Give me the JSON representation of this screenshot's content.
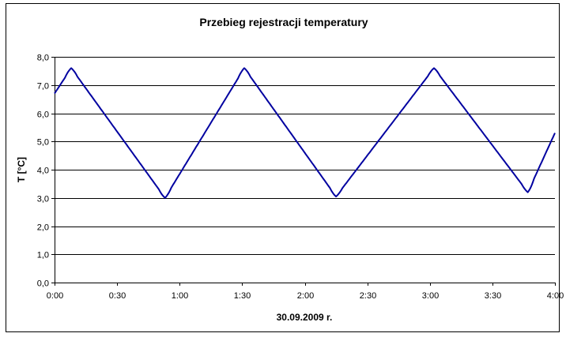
{
  "chart_data": {
    "type": "line",
    "title": "Przebieg rejestracji temperatury",
    "xlabel": "30.09.2009 r.",
    "ylabel": "T [°C]",
    "x_tick_labels": [
      "0:00",
      "0:30",
      "1:00",
      "1:30",
      "2:00",
      "2:30",
      "3:00",
      "3:30",
      "4:00"
    ],
    "y_tick_labels": [
      "0,0",
      "1,0",
      "2,0",
      "3,0",
      "4,0",
      "5,0",
      "6,0",
      "7,0",
      "8,0"
    ],
    "xlim_minutes": [
      0,
      240
    ],
    "ylim": [
      0,
      8
    ],
    "grid": "horizontal",
    "line_color": "#0000a0",
    "series": [
      {
        "x_minutes": [
          0,
          8,
          53,
          91,
          135,
          182,
          227,
          240
        ],
        "values": [
          6.7,
          7.6,
          3.0,
          7.6,
          3.05,
          7.6,
          3.2,
          5.3
        ]
      }
    ]
  }
}
